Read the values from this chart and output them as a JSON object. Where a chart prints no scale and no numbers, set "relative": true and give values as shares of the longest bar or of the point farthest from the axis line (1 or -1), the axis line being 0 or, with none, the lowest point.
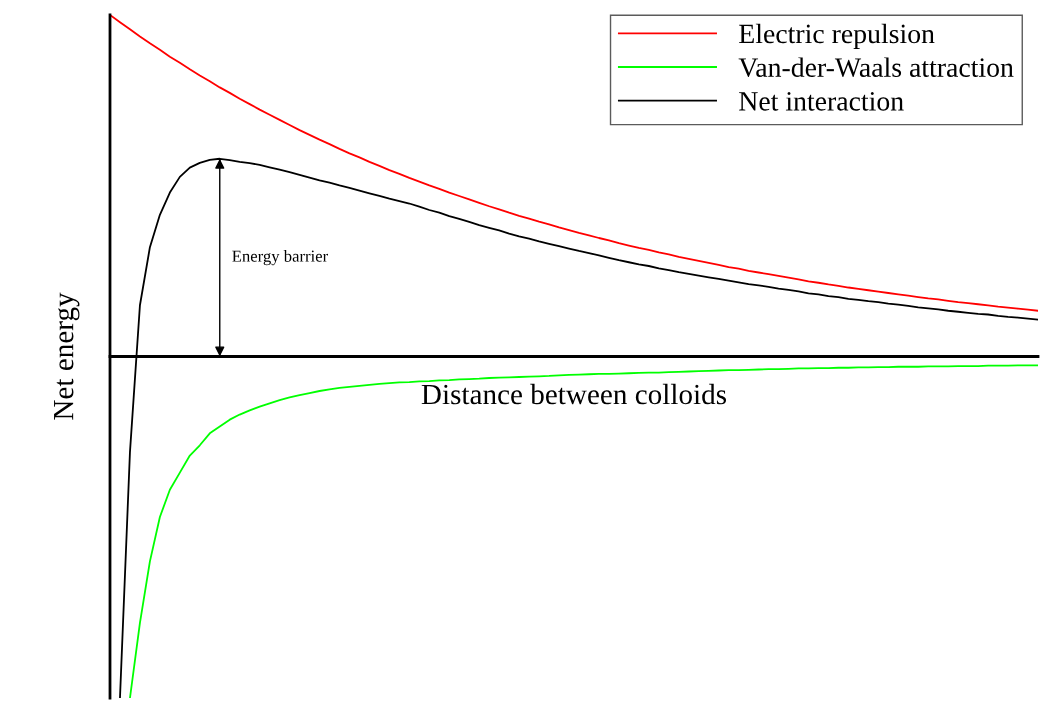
{
  "chart_data": {
    "type": "line",
    "relative": true,
    "xlabel": "Distance between colloids",
    "ylabel": "Net energy",
    "categories": [
      null,
      null,
      null,
      null,
      null,
      null,
      null,
      null,
      null,
      null,
      null,
      null,
      null,
      null,
      null,
      null,
      null,
      null,
      null,
      null,
      null,
      null,
      null,
      null,
      null,
      null,
      null,
      null,
      null,
      null,
      null,
      null,
      null,
      null,
      null,
      null,
      null,
      null,
      null,
      null,
      null,
      null,
      null,
      null,
      null,
      null,
      null,
      null,
      null,
      null,
      null,
      null,
      null,
      null,
      null,
      null,
      null,
      null,
      null,
      null,
      null,
      null,
      null,
      null,
      null,
      null,
      null,
      null,
      null,
      null,
      null,
      null,
      null,
      null,
      null,
      null,
      null,
      null,
      null,
      null,
      null,
      null,
      null,
      null,
      null,
      null,
      null,
      null,
      null,
      null,
      null,
      null,
      null,
      null
    ],
    "series": [
      {
        "name": "Electric repulsion",
        "color": "#ff0000",
        "values": [
          1.0,
          0.979,
          0.958,
          0.937,
          0.917,
          0.898,
          0.878,
          0.86,
          0.841,
          0.823,
          0.806,
          0.788,
          0.772,
          0.755,
          0.739,
          0.723,
          0.708,
          0.693,
          0.678,
          0.663,
          0.649,
          0.635,
          0.622,
          0.608,
          0.595,
          0.583,
          0.57,
          0.558,
          0.546,
          0.535,
          0.523,
          0.512,
          0.501,
          0.491,
          0.48,
          0.47,
          0.46,
          0.45,
          0.44,
          0.431,
          0.421,
          0.412,
          0.404,
          0.395,
          0.387,
          0.378,
          0.37,
          0.362,
          0.355,
          0.347,
          0.34,
          0.332,
          0.325,
          0.318,
          0.312,
          0.305,
          0.299,
          0.292,
          0.286,
          0.28,
          0.274,
          0.268,
          0.262,
          0.257,
          0.251,
          0.246,
          0.241,
          0.236,
          0.231,
          0.226,
          0.22,
          0.216,
          0.211,
          0.207,
          0.202,
          0.198,
          0.194,
          0.19,
          0.186,
          0.182,
          0.178,
          0.174,
          0.17,
          0.167,
          0.163,
          0.159,
          0.156,
          0.153,
          0.15,
          0.146,
          0.143,
          0.14,
          0.137,
          0.134
        ]
      },
      {
        "name": "Van-der-Waals attraction",
        "color": "#00ff00",
        "values": [
          null,
          null,
          -1.0,
          -0.78,
          -0.6,
          -0.47,
          -0.39,
          -0.34,
          -0.29,
          -0.26,
          -0.225,
          -0.205,
          -0.185,
          -0.17,
          -0.158,
          -0.147,
          -0.137,
          -0.128,
          -0.12,
          -0.113,
          -0.107,
          -0.101,
          -0.096,
          -0.092,
          -0.089,
          -0.086,
          -0.083,
          -0.08,
          -0.078,
          -0.076,
          -0.075,
          -0.073,
          -0.072,
          -0.07,
          -0.069,
          -0.067,
          -0.066,
          -0.065,
          -0.063,
          -0.062,
          -0.061,
          -0.06,
          -0.059,
          -0.058,
          -0.057,
          -0.055,
          -0.054,
          -0.053,
          -0.052,
          -0.051,
          -0.051,
          -0.05,
          -0.049,
          -0.048,
          -0.047,
          -0.047,
          -0.046,
          -0.045,
          -0.044,
          -0.043,
          -0.042,
          -0.041,
          -0.04,
          -0.04,
          -0.039,
          -0.038,
          -0.037,
          -0.037,
          -0.036,
          -0.035,
          -0.035,
          -0.034,
          -0.034,
          -0.033,
          -0.033,
          -0.032,
          -0.032,
          -0.031,
          -0.031,
          -0.03,
          -0.03,
          -0.03,
          -0.029,
          -0.029,
          -0.029,
          -0.028,
          -0.028,
          -0.028,
          -0.027,
          -0.027,
          -0.027,
          -0.026,
          -0.026,
          -0.026
        ]
      },
      {
        "name": "Net interaction",
        "color": "#000000",
        "values": [
          null,
          -1.0,
          -0.28,
          0.15,
          0.32,
          0.415,
          0.48,
          0.526,
          0.553,
          0.567,
          0.576,
          0.579,
          0.575,
          0.57,
          0.566,
          0.561,
          0.554,
          0.547,
          0.54,
          0.532,
          0.524,
          0.516,
          0.509,
          0.501,
          0.494,
          0.486,
          0.478,
          0.47,
          0.462,
          0.455,
          0.448,
          0.439,
          0.429,
          0.421,
          0.411,
          0.403,
          0.394,
          0.385,
          0.377,
          0.369,
          0.36,
          0.352,
          0.345,
          0.337,
          0.33,
          0.323,
          0.316,
          0.309,
          0.303,
          0.296,
          0.289,
          0.282,
          0.276,
          0.27,
          0.265,
          0.258,
          0.253,
          0.247,
          0.242,
          0.237,
          0.232,
          0.227,
          0.222,
          0.217,
          0.212,
          0.208,
          0.204,
          0.199,
          0.195,
          0.191,
          0.185,
          0.182,
          0.177,
          0.174,
          0.169,
          0.166,
          0.162,
          0.159,
          0.155,
          0.152,
          0.148,
          0.144,
          0.141,
          0.138,
          0.134,
          0.131,
          0.128,
          0.125,
          0.123,
          0.119,
          0.116,
          0.114,
          0.111,
          0.108
        ]
      }
    ],
    "annotations": [
      "Energy barrier"
    ],
    "legend": "top right",
    "line_style": "solid",
    "marker": "none"
  }
}
